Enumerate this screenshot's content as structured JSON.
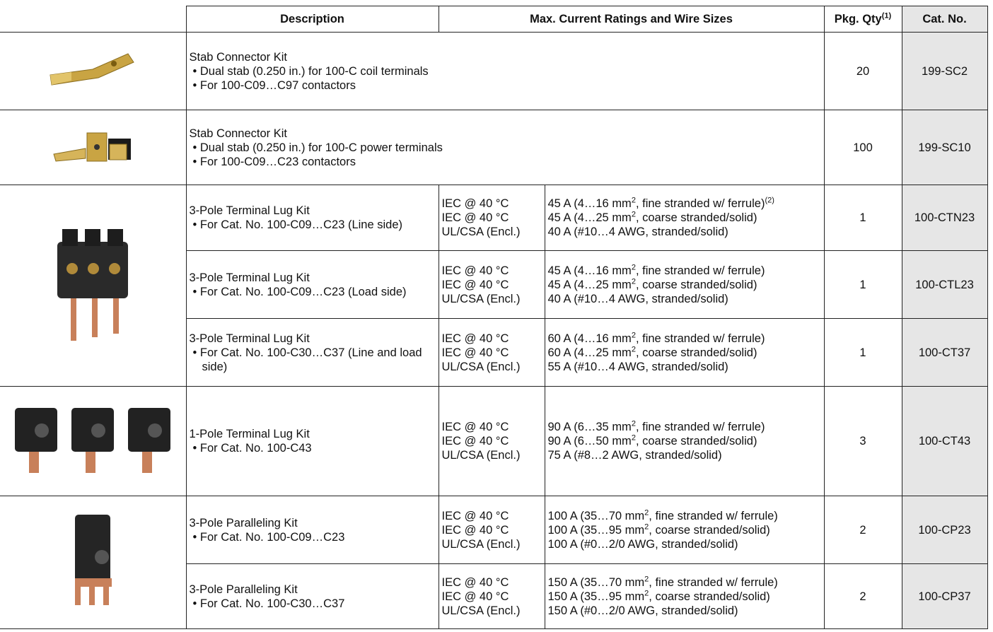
{
  "header": {
    "description": "Description",
    "ratings": "Max. Current Ratings and Wire Sizes",
    "pkg_qty": "Pkg. Qty",
    "pkg_qty_note": "(1)",
    "cat_no": "Cat. No."
  },
  "rows": [
    {
      "title": "Stab Connector Kit",
      "bullets": [
        "Dual stab (0.250 in.) for 100-C coil terminals",
        "For 100-C09…C97 contactors"
      ],
      "conditions": [],
      "ratings": [],
      "pkg_qty": 20,
      "cat_no": "199-SC2"
    },
    {
      "title": "Stab Connector Kit",
      "bullets": [
        "Dual stab (0.250 in.) for 100-C power terminals",
        "For 100-C09…C23 contactors"
      ],
      "conditions": [],
      "ratings": [],
      "pkg_qty": 100,
      "cat_no": "199-SC10"
    },
    {
      "title": "3-Pole Terminal Lug Kit",
      "bullets": [
        "For Cat. No. 100-C09…C23 (Line side)"
      ],
      "conditions": [
        "IEC @ 40 °C",
        "IEC @ 40 °C",
        "UL/CSA (Encl.)"
      ],
      "ratings": [
        {
          "pre": "45 A (4…16 mm",
          "sup": "2",
          "post": ", fine stranded w/ ferrule)",
          "note": "(2)"
        },
        {
          "pre": "45 A (4…25 mm",
          "sup": "2",
          "post": ", coarse stranded/solid)"
        },
        {
          "pre": "40 A (#10…4 AWG, stranded/solid)"
        }
      ],
      "pkg_qty": 1,
      "cat_no": "100-CTN23"
    },
    {
      "title": "3-Pole Terminal Lug Kit",
      "bullets": [
        "For Cat. No. 100-C09…C23 (Load side)"
      ],
      "conditions": [
        "IEC @ 40 °C",
        "IEC @ 40 °C",
        "UL/CSA (Encl.)"
      ],
      "ratings": [
        {
          "pre": "45 A (4…16 mm",
          "sup": "2",
          "post": ", fine stranded w/ ferrule)"
        },
        {
          "pre": "45 A (4…25 mm",
          "sup": "2",
          "post": ", coarse stranded/solid)"
        },
        {
          "pre": "40 A (#10…4 AWG, stranded/solid)"
        }
      ],
      "pkg_qty": 1,
      "cat_no": "100-CTL23"
    },
    {
      "title": "3-Pole Terminal Lug Kit",
      "bullets": [
        "For Cat. No. 100-C30…C37 (Line and load side)"
      ],
      "conditions": [
        "IEC @ 40 °C",
        "IEC @ 40 °C",
        "UL/CSA (Encl.)"
      ],
      "ratings": [
        {
          "pre": "60 A (4…16 mm",
          "sup": "2",
          "post": ", fine stranded w/ ferrule)"
        },
        {
          "pre": "60 A (4…25 mm",
          "sup": "2",
          "post": ", coarse stranded/solid)"
        },
        {
          "pre": "55 A (#10…4 AWG, stranded/solid)"
        }
      ],
      "pkg_qty": 1,
      "cat_no": "100-CT37"
    },
    {
      "title": "1-Pole Terminal Lug Kit",
      "bullets": [
        "For Cat. No. 100-C43"
      ],
      "conditions": [
        "IEC @ 40 °C",
        "IEC @ 40 °C",
        "UL/CSA (Encl.)"
      ],
      "ratings": [
        {
          "pre": "90 A (6…35 mm",
          "sup": "2",
          "post": ", fine stranded w/ ferrule)"
        },
        {
          "pre": "90 A (6…50 mm",
          "sup": "2",
          "post": ", coarse stranded/solid)"
        },
        {
          "pre": "75 A (#8…2 AWG, stranded/solid)"
        }
      ],
      "pkg_qty": 3,
      "cat_no": "100-CT43"
    },
    {
      "title": "3-Pole Paralleling Kit",
      "bullets": [
        "For Cat. No. 100-C09…C23"
      ],
      "conditions": [
        "IEC @ 40 °C",
        "IEC @ 40 °C",
        "UL/CSA (Encl.)"
      ],
      "ratings": [
        {
          "pre": "100 A (35…70 mm",
          "sup": "2",
          "post": ", fine stranded w/ ferrule)"
        },
        {
          "pre": "100 A (35…95 mm",
          "sup": "2",
          "post": ", coarse stranded/solid)"
        },
        {
          "pre": "100 A (#0…2/0 AWG, stranded/solid)"
        }
      ],
      "pkg_qty": 2,
      "cat_no": "100-CP23"
    },
    {
      "title": "3-Pole Paralleling Kit",
      "bullets": [
        "For Cat. No. 100-C30…C37"
      ],
      "conditions": [
        "IEC @ 40 °C",
        "IEC @ 40 °C",
        "UL/CSA (Encl.)"
      ],
      "ratings": [
        {
          "pre": "150 A (35…70 mm",
          "sup": "2",
          "post": ", fine stranded w/ ferrule)"
        },
        {
          "pre": "150 A (35…95 mm",
          "sup": "2",
          "post": ", coarse stranded/solid)"
        },
        {
          "pre": "150 A (#0…2/0 AWG, stranded/solid)"
        }
      ],
      "pkg_qty": 2,
      "cat_no": "100-CP37"
    }
  ]
}
